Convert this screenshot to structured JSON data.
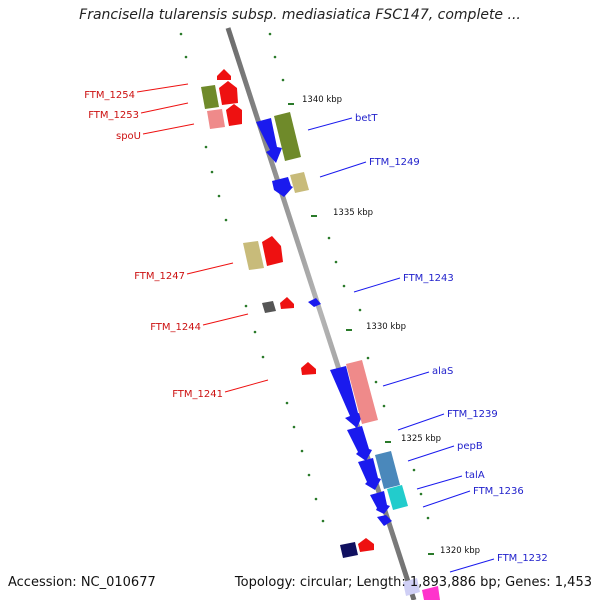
{
  "title": "Francisella tularensis subsp. mediasiatica FSC147, complete ...",
  "footer": {
    "accession": "Accession: NC_010677",
    "stats": "Topology: circular; Length: 1,893,886 bp; Genes: 1,453"
  },
  "scale_ticks": [
    "1340 kbp",
    "1335 kbp",
    "1330 kbp",
    "1325 kbp",
    "1320 kbp"
  ],
  "reverse_labels": [
    "FTM_1254",
    "FTM_1253",
    "spoU",
    "FTM_1247",
    "FTM_1244",
    "FTM_1241"
  ],
  "forward_labels": [
    "betT",
    "FTM_1249",
    "FTM_1243",
    "alaS",
    "FTM_1239",
    "pepB",
    "talA",
    "FTM_1236",
    "FTM_1232"
  ],
  "colors": {
    "backbone": "#8a8a8a",
    "forward_strand": "#1a1aee",
    "reverse_strand": "#ee1111",
    "label_forward": "#2222cc",
    "label_reverse": "#cc1111",
    "dots": "#2a7a2a"
  }
}
